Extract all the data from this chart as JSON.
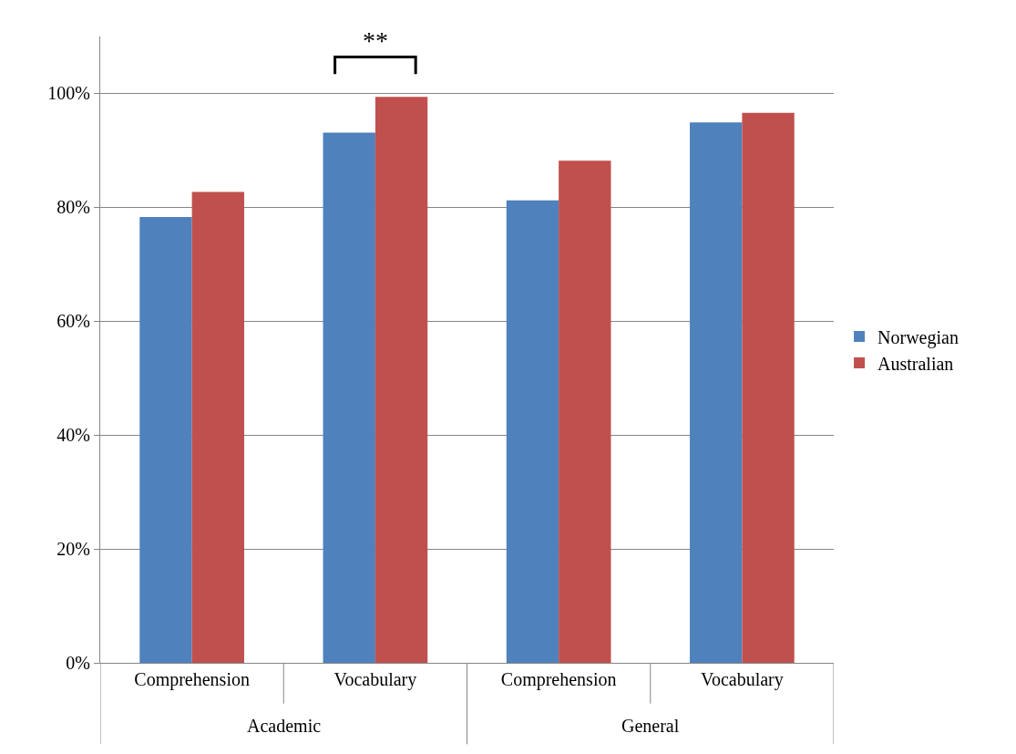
{
  "chart_data": {
    "type": "bar",
    "categories": [
      "Comprehension",
      "Vocabulary",
      "Comprehension",
      "Vocabulary"
    ],
    "series": [
      {
        "name": "Norwegian",
        "color": "#4f81bd",
        "values": [
          78.3,
          93.1,
          81.2,
          94.9
        ]
      },
      {
        "name": "Australian",
        "color": "#c0504d",
        "values": [
          82.7,
          99.4,
          88.2,
          96.6
        ]
      }
    ],
    "ylim": [
      0,
      110
    ],
    "yticks": [
      {
        "value": 0,
        "label": "0%"
      },
      {
        "value": 20,
        "label": "20%"
      },
      {
        "value": 40,
        "label": "40%"
      },
      {
        "value": 60,
        "label": "60%"
      },
      {
        "value": 80,
        "label": "80%"
      },
      {
        "value": 100,
        "label": "100%"
      }
    ],
    "annotations": [
      "Academic",
      "General",
      "**"
    ],
    "grid": "y",
    "legend": "right"
  }
}
